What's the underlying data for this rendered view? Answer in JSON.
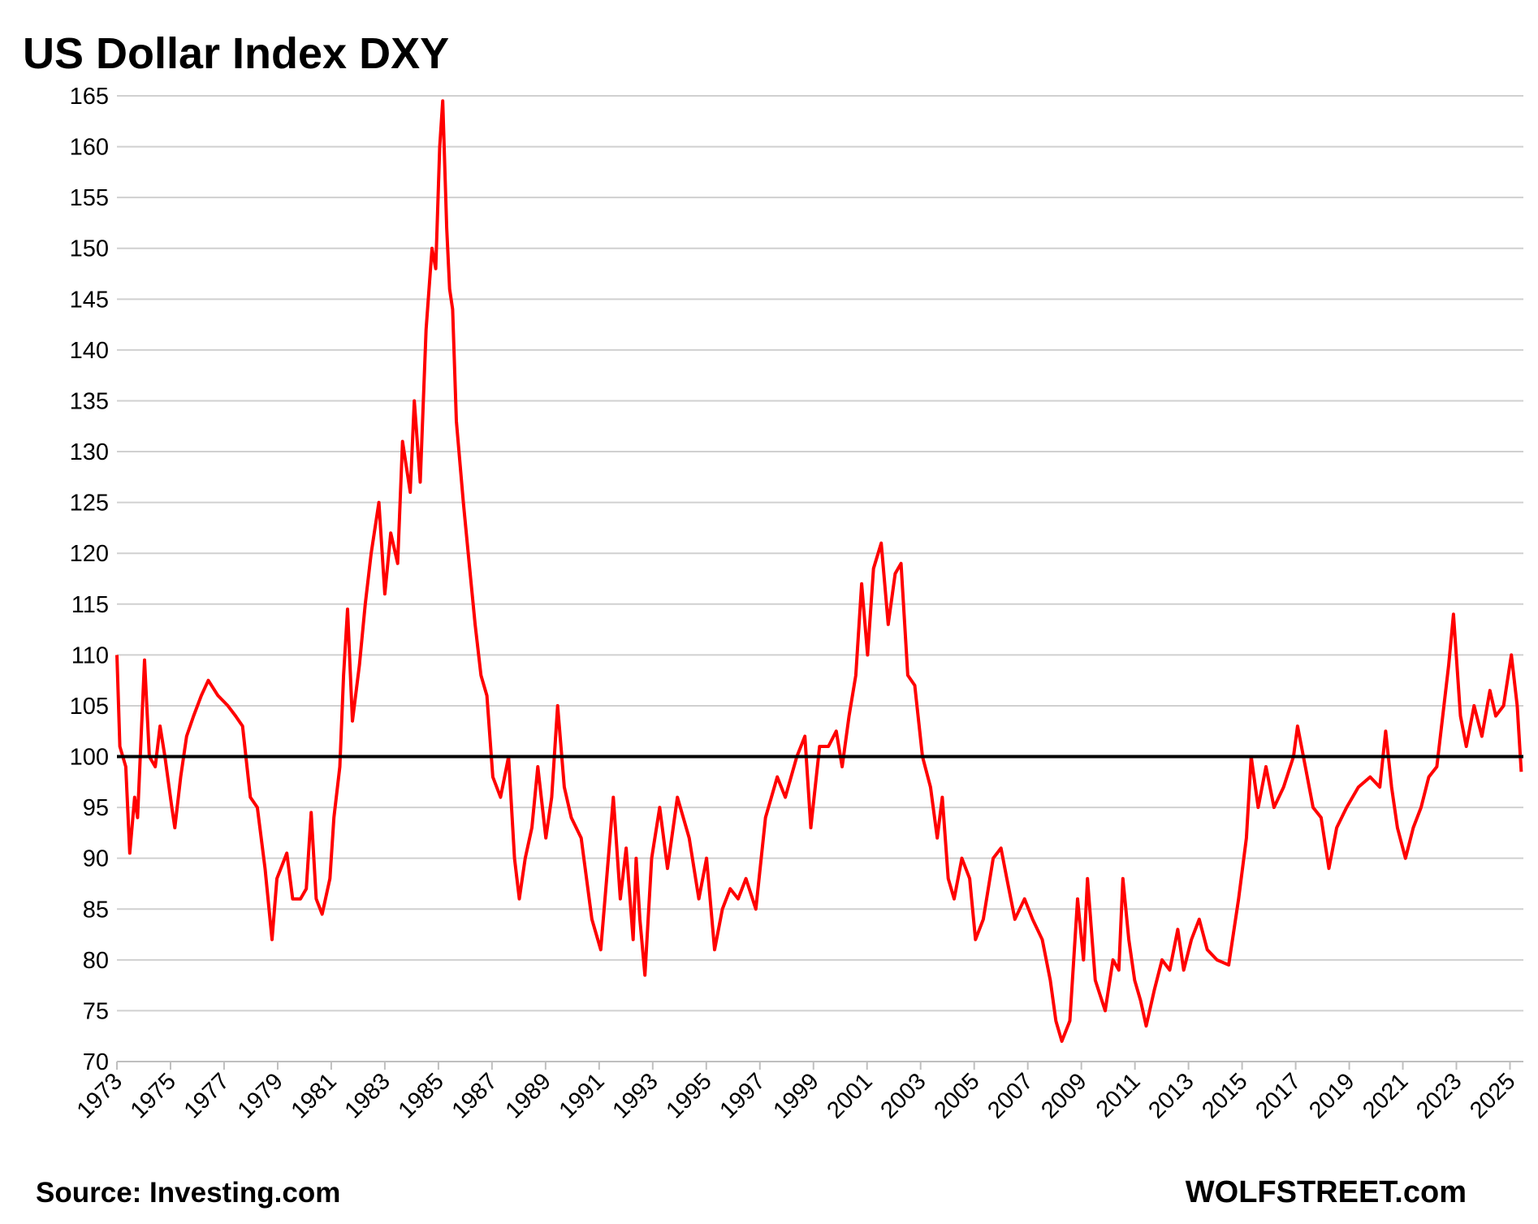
{
  "chart_data": {
    "type": "line",
    "title": "US Dollar Index DXY",
    "source": "Source: Investing.com",
    "brand": "WOLFSTREET.com",
    "series": [
      {
        "name": "DXY",
        "color": "#ff0000",
        "x": [
          1973.0,
          1973.11,
          1973.33,
          1973.48,
          1973.66,
          1973.77,
          1974.03,
          1974.21,
          1974.43,
          1974.61,
          1974.79,
          1975.05,
          1975.16,
          1975.38,
          1975.6,
          1975.86,
          1976.15,
          1976.41,
          1976.77,
          1977.14,
          1977.43,
          1977.69,
          1977.98,
          1978.24,
          1978.53,
          1978.79,
          1978.97,
          1979.34,
          1979.56,
          1979.85,
          1980.07,
          1980.25,
          1980.44,
          1980.66,
          1980.95,
          1981.1,
          1981.32,
          1981.46,
          1981.61,
          1981.79,
          1982.05,
          1982.27,
          1982.49,
          1982.78,
          1983.0,
          1983.22,
          1983.48,
          1983.66,
          1983.95,
          1984.1,
          1984.32,
          1984.54,
          1984.76,
          1984.9,
          1985.05,
          1985.16,
          1985.31,
          1985.42,
          1985.53,
          1985.67,
          1985.93,
          1986.15,
          1986.37,
          1986.59,
          1986.81,
          1987.03,
          1987.32,
          1987.62,
          1987.84,
          1988.02,
          1988.24,
          1988.49,
          1988.71,
          1989.01,
          1989.23,
          1989.45,
          1989.7,
          1989.96,
          1990.33,
          1990.73,
          1991.06,
          1991.28,
          1991.53,
          1991.79,
          1992.01,
          1992.27,
          1992.38,
          1992.52,
          1992.71,
          1992.96,
          1993.26,
          1993.55,
          1993.92,
          1994.36,
          1994.72,
          1995.01,
          1995.31,
          1995.6,
          1995.89,
          1996.19,
          1996.48,
          1996.85,
          1997.21,
          1997.65,
          1997.95,
          1998.38,
          1998.68,
          1998.9,
          1999.23,
          1999.56,
          1999.85,
          2000.07,
          2000.33,
          2000.58,
          2000.8,
          2001.02,
          2001.24,
          2001.53,
          2001.79,
          2002.05,
          2002.27,
          2002.52,
          2002.78,
          2003.07,
          2003.37,
          2003.62,
          2003.81,
          2004.03,
          2004.25,
          2004.54,
          2004.83,
          2005.05,
          2005.34,
          2005.71,
          2006.0,
          2006.22,
          2006.52,
          2006.88,
          2007.18,
          2007.54,
          2007.84,
          2008.05,
          2008.27,
          2008.57,
          2008.86,
          2009.08,
          2009.23,
          2009.52,
          2009.89,
          2010.18,
          2010.4,
          2010.55,
          2010.77,
          2010.99,
          2011.21,
          2011.42,
          2011.72,
          2012.01,
          2012.3,
          2012.6,
          2012.82,
          2013.11,
          2013.4,
          2013.7,
          2014.06,
          2014.5,
          2014.87,
          2015.16,
          2015.34,
          2015.6,
          2015.89,
          2016.19,
          2016.55,
          2016.92,
          2017.07,
          2017.36,
          2017.65,
          2017.95,
          2018.24,
          2018.53,
          2018.9,
          2019.34,
          2019.78,
          2020.14,
          2020.36,
          2020.58,
          2020.8,
          2021.1,
          2021.39,
          2021.68,
          2021.97,
          2022.27,
          2022.49,
          2022.71,
          2022.89,
          2023.15,
          2023.37,
          2023.66,
          2023.95,
          2024.25,
          2024.47,
          2024.76,
          2025.05,
          2025.27,
          2025.42
        ],
        "values": [
          110,
          101,
          99,
          90.5,
          96,
          94,
          109.5,
          100,
          99,
          103,
          100,
          95,
          93,
          98,
          102,
          104,
          106,
          107.5,
          106,
          105,
          104,
          103,
          96,
          95,
          89,
          82,
          88,
          90.5,
          86,
          86,
          87,
          94.5,
          86,
          84.5,
          88,
          94,
          99,
          108,
          114.5,
          103.5,
          109,
          115,
          120,
          125,
          116,
          122,
          119,
          131,
          126,
          135,
          127,
          142,
          150,
          148,
          160,
          164.5,
          152,
          146,
          144,
          133,
          125,
          119,
          113,
          108,
          106,
          98,
          96,
          100,
          90,
          86,
          90,
          93,
          99,
          92,
          96,
          105,
          97,
          94,
          92,
          84,
          81,
          88,
          96,
          86,
          91,
          82,
          90,
          84,
          78.5,
          90,
          95,
          89,
          96,
          92,
          86,
          90,
          81,
          85,
          87,
          86,
          88,
          85,
          94,
          98,
          96,
          100,
          102,
          93,
          101,
          101,
          102.5,
          99,
          104,
          108,
          117,
          110,
          118.5,
          121,
          113,
          118,
          119,
          108,
          107,
          100,
          97,
          92,
          96,
          88,
          86,
          90,
          88,
          82,
          84,
          90,
          91,
          88,
          84,
          86,
          84,
          82,
          78,
          74,
          72,
          74,
          86,
          80,
          88,
          78,
          75,
          80,
          79,
          88,
          82,
          78,
          76,
          73.5,
          77,
          80,
          79,
          83,
          79,
          82,
          84,
          81,
          80,
          79.5,
          86,
          92,
          100,
          95,
          99,
          95,
          97,
          100,
          103,
          99,
          95,
          94,
          89,
          93,
          95,
          97,
          98,
          97,
          102.5,
          97,
          93,
          90,
          93,
          95,
          98,
          99,
          104,
          109,
          114,
          104,
          101,
          105,
          102,
          106.5,
          104,
          105,
          110,
          105,
          98.5
        ]
      }
    ],
    "reference_line": {
      "value": 100,
      "color": "#000000"
    },
    "xlim": [
      1973,
      2025.5
    ],
    "xticks": [
      1973,
      1975,
      1977,
      1979,
      1981,
      1983,
      1985,
      1987,
      1989,
      1991,
      1993,
      1995,
      1997,
      1999,
      2001,
      2003,
      2005,
      2007,
      2009,
      2011,
      2013,
      2015,
      2017,
      2019,
      2021,
      2023,
      2025
    ],
    "ylim": [
      70,
      165
    ],
    "yticks": [
      70,
      75,
      80,
      85,
      90,
      95,
      100,
      105,
      110,
      115,
      120,
      125,
      130,
      135,
      140,
      145,
      150,
      155,
      160,
      165
    ],
    "grid": true
  }
}
